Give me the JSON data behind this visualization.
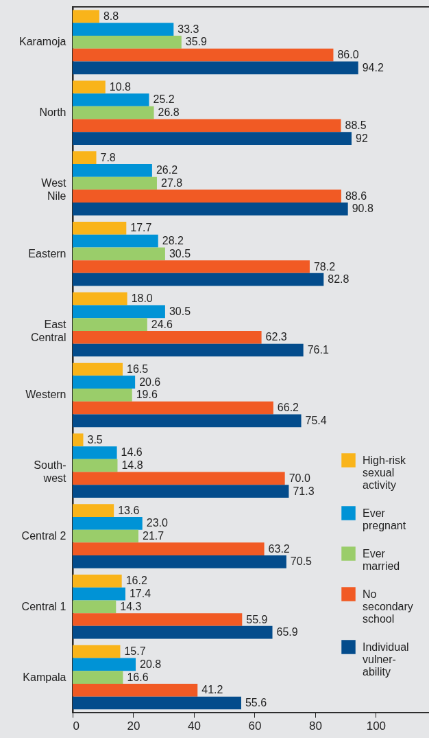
{
  "chart_data": {
    "type": "bar",
    "orientation": "horizontal",
    "categories": [
      "Karamoja",
      "North",
      "West\nNile",
      "Eastern",
      "East\nCentral",
      "Western",
      "South-\nwest",
      "Central 2",
      "Central 1",
      "Kampala"
    ],
    "series": [
      {
        "name": "High-risk\nsexual\nactivity",
        "color": "#f9b41a",
        "values": [
          8.8,
          10.8,
          7.8,
          17.7,
          18.0,
          16.5,
          3.5,
          13.6,
          16.2,
          15.7
        ],
        "value_labels": [
          "8.8",
          "10.8",
          "7.8",
          "17.7",
          "18.0",
          "16.5",
          "3.5",
          "13.6",
          "16.2",
          "15.7"
        ]
      },
      {
        "name": "Ever\npregnant",
        "color": "#0093d6",
        "values": [
          33.3,
          25.2,
          26.2,
          28.2,
          30.5,
          20.6,
          14.6,
          23.0,
          17.4,
          20.8
        ],
        "value_labels": [
          "33.3",
          "25.2",
          "26.2",
          "28.2",
          "30.5",
          "20.6",
          "14.6",
          "23.0",
          "17.4",
          "20.8"
        ]
      },
      {
        "name": "Ever\nmarried",
        "color": "#9acd6a",
        "values": [
          35.9,
          26.8,
          27.8,
          30.5,
          24.6,
          19.6,
          14.8,
          21.7,
          14.3,
          16.6
        ],
        "value_labels": [
          "35.9",
          "26.8",
          "27.8",
          "30.5",
          "24.6",
          "19.6",
          "14.8",
          "21.7",
          "14.3",
          "16.6"
        ]
      },
      {
        "name": "No\nsecondary\nschool",
        "color": "#f15a24",
        "values": [
          86.0,
          88.5,
          88.6,
          78.2,
          62.3,
          66.2,
          70.0,
          63.2,
          55.9,
          41.2
        ],
        "value_labels": [
          "86.0",
          "88.5",
          "88.6",
          "78.2",
          "62.3",
          "66.2",
          "70.0",
          "63.2",
          "55.9",
          "41.2"
        ]
      },
      {
        "name": "Individual\nvulner-\nability",
        "color": "#034c8c",
        "values": [
          94.2,
          92,
          90.8,
          82.8,
          76.1,
          75.4,
          71.3,
          70.5,
          65.9,
          55.6
        ],
        "value_labels": [
          "94.2",
          "92",
          "90.8",
          "82.8",
          "76.1",
          "75.4",
          "71.3",
          "70.5",
          "65.9",
          "55.6"
        ]
      }
    ],
    "xlim": [
      0,
      118
    ],
    "xticks": [
      0,
      20,
      40,
      60,
      80,
      100
    ],
    "legend": "bottom right",
    "grid": false
  }
}
